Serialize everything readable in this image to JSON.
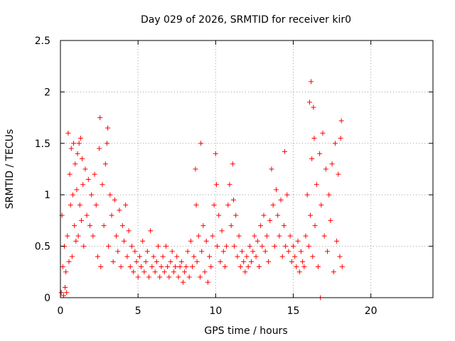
{
  "chart_data": {
    "type": "scatter",
    "title": "Day 029 of 2026, SRMTID for receiver kir0",
    "xlabel": "GPS time / hours",
    "ylabel": "SRMTID / TECUs",
    "xlim": [
      0,
      24
    ],
    "ylim": [
      0,
      2.5
    ],
    "xticks": [
      0,
      5,
      10,
      15,
      20
    ],
    "xtick_labels": [
      "0",
      "5",
      "10",
      "15",
      "20"
    ],
    "yticks": [
      0,
      0.5,
      1,
      1.5,
      2,
      2.5
    ],
    "ytick_labels": [
      "0",
      "0.5",
      "1",
      "1.5",
      "2",
      "2.5"
    ],
    "grid": true,
    "marker": "+",
    "color": "#ff0000",
    "series": [
      {
        "name": "SRMTID",
        "points": [
          [
            0.05,
            0.05
          ],
          [
            0.1,
            0.8
          ],
          [
            0.15,
            0.3
          ],
          [
            0.2,
            0.02
          ],
          [
            0.25,
            0.5
          ],
          [
            0.3,
            0.1
          ],
          [
            0.35,
            0.25
          ],
          [
            0.4,
            0.05
          ],
          [
            0.45,
            0.6
          ],
          [
            0.5,
            1.6
          ],
          [
            0.55,
            0.35
          ],
          [
            0.6,
            1.2
          ],
          [
            0.65,
            0.9
          ],
          [
            0.7,
            1.45
          ],
          [
            0.75,
            0.4
          ],
          [
            0.8,
            1.0
          ],
          [
            0.85,
            1.5
          ],
          [
            0.9,
            0.7
          ],
          [
            0.95,
            1.3
          ],
          [
            1.0,
            0.55
          ],
          [
            1.05,
            1.05
          ],
          [
            1.1,
            1.4
          ],
          [
            1.15,
            0.6
          ],
          [
            1.2,
            1.5
          ],
          [
            1.25,
            0.9
          ],
          [
            1.3,
            1.55
          ],
          [
            1.35,
            0.75
          ],
          [
            1.4,
            1.35
          ],
          [
            1.45,
            1.1
          ],
          [
            1.5,
            0.5
          ],
          [
            1.6,
            1.25
          ],
          [
            1.7,
            0.8
          ],
          [
            1.8,
            1.15
          ],
          [
            1.9,
            0.7
          ],
          [
            2.0,
            1.0
          ],
          [
            2.1,
            0.6
          ],
          [
            2.2,
            1.2
          ],
          [
            2.3,
            0.9
          ],
          [
            2.4,
            0.4
          ],
          [
            2.5,
            1.45
          ],
          [
            2.55,
            1.75
          ],
          [
            2.6,
            0.3
          ],
          [
            2.7,
            1.1
          ],
          [
            2.8,
            0.7
          ],
          [
            2.9,
            1.3
          ],
          [
            3.0,
            1.5
          ],
          [
            3.05,
            1.65
          ],
          [
            3.1,
            0.5
          ],
          [
            3.2,
            1.0
          ],
          [
            3.3,
            0.8
          ],
          [
            3.4,
            0.35
          ],
          [
            3.5,
            0.95
          ],
          [
            3.6,
            0.6
          ],
          [
            3.7,
            0.45
          ],
          [
            3.8,
            0.85
          ],
          [
            3.9,
            0.3
          ],
          [
            4.0,
            0.7
          ],
          [
            4.1,
            0.55
          ],
          [
            4.2,
            0.9
          ],
          [
            4.3,
            0.4
          ],
          [
            4.4,
            0.65
          ],
          [
            4.5,
            0.3
          ],
          [
            4.6,
            0.5
          ],
          [
            4.7,
            0.25
          ],
          [
            4.8,
            0.45
          ],
          [
            4.9,
            0.35
          ],
          [
            5.0,
            0.2
          ],
          [
            5.1,
            0.4
          ],
          [
            5.2,
            0.3
          ],
          [
            5.3,
            0.55
          ],
          [
            5.4,
            0.25
          ],
          [
            5.5,
            0.35
          ],
          [
            5.6,
            0.45
          ],
          [
            5.7,
            0.2
          ],
          [
            5.8,
            0.65
          ],
          [
            5.9,
            0.3
          ],
          [
            6.0,
            0.4
          ],
          [
            6.1,
            0.25
          ],
          [
            6.2,
            0.35
          ],
          [
            6.3,
            0.5
          ],
          [
            6.4,
            0.2
          ],
          [
            6.5,
            0.3
          ],
          [
            6.6,
            0.4
          ],
          [
            6.7,
            0.25
          ],
          [
            6.8,
            0.5
          ],
          [
            6.9,
            0.3
          ],
          [
            7.0,
            0.2
          ],
          [
            7.1,
            0.35
          ],
          [
            7.2,
            0.45
          ],
          [
            7.3,
            0.25
          ],
          [
            7.4,
            0.3
          ],
          [
            7.5,
            0.4
          ],
          [
            7.6,
            0.2
          ],
          [
            7.7,
            0.3
          ],
          [
            7.8,
            0.35
          ],
          [
            7.9,
            0.15
          ],
          [
            8.0,
            0.25
          ],
          [
            8.1,
            0.3
          ],
          [
            8.2,
            0.45
          ],
          [
            8.3,
            0.2
          ],
          [
            8.4,
            0.55
          ],
          [
            8.5,
            0.3
          ],
          [
            8.6,
            0.4
          ],
          [
            8.7,
            1.25
          ],
          [
            8.75,
            0.9
          ],
          [
            8.8,
            0.35
          ],
          [
            8.9,
            0.6
          ],
          [
            9.0,
            0.2
          ],
          [
            9.05,
            1.5
          ],
          [
            9.1,
            0.45
          ],
          [
            9.2,
            0.7
          ],
          [
            9.3,
            0.25
          ],
          [
            9.4,
            0.55
          ],
          [
            9.5,
            0.15
          ],
          [
            9.6,
            0.4
          ],
          [
            9.7,
            0.3
          ],
          [
            9.8,
            0.6
          ],
          [
            9.9,
            0.9
          ],
          [
            10.0,
            1.4
          ],
          [
            10.05,
            1.1
          ],
          [
            10.1,
            0.5
          ],
          [
            10.2,
            0.8
          ],
          [
            10.3,
            0.35
          ],
          [
            10.4,
            0.65
          ],
          [
            10.5,
            0.45
          ],
          [
            10.6,
            0.3
          ],
          [
            10.7,
            0.5
          ],
          [
            10.8,
            0.9
          ],
          [
            10.9,
            1.1
          ],
          [
            11.0,
            0.7
          ],
          [
            11.1,
            1.3
          ],
          [
            11.15,
            0.95
          ],
          [
            11.2,
            0.5
          ],
          [
            11.3,
            0.8
          ],
          [
            11.4,
            0.4
          ],
          [
            11.5,
            0.6
          ],
          [
            11.6,
            0.3
          ],
          [
            11.7,
            0.45
          ],
          [
            11.8,
            0.35
          ],
          [
            11.9,
            0.25
          ],
          [
            12.0,
            0.4
          ],
          [
            12.1,
            0.3
          ],
          [
            12.2,
            0.5
          ],
          [
            12.3,
            0.35
          ],
          [
            12.4,
            0.45
          ],
          [
            12.5,
            0.6
          ],
          [
            12.6,
            0.4
          ],
          [
            12.7,
            0.55
          ],
          [
            12.8,
            0.3
          ],
          [
            12.9,
            0.7
          ],
          [
            13.0,
            0.5
          ],
          [
            13.1,
            0.8
          ],
          [
            13.2,
            0.45
          ],
          [
            13.3,
            0.6
          ],
          [
            13.4,
            0.35
          ],
          [
            13.5,
            0.75
          ],
          [
            13.6,
            1.25
          ],
          [
            13.7,
            0.9
          ],
          [
            13.8,
            0.5
          ],
          [
            13.9,
            1.05
          ],
          [
            14.0,
            0.8
          ],
          [
            14.1,
            0.6
          ],
          [
            14.2,
            0.95
          ],
          [
            14.3,
            0.4
          ],
          [
            14.4,
            0.7
          ],
          [
            14.45,
            1.42
          ],
          [
            14.5,
            0.5
          ],
          [
            14.6,
            1.0
          ],
          [
            14.7,
            0.45
          ],
          [
            14.8,
            0.6
          ],
          [
            14.9,
            0.35
          ],
          [
            15.0,
            0.5
          ],
          [
            15.1,
            0.4
          ],
          [
            15.2,
            0.3
          ],
          [
            15.3,
            0.55
          ],
          [
            15.4,
            0.25
          ],
          [
            15.5,
            0.45
          ],
          [
            15.6,
            0.35
          ],
          [
            15.7,
            0.3
          ],
          [
            15.8,
            0.6
          ],
          [
            15.9,
            1.0
          ],
          [
            16.0,
            0.5
          ],
          [
            16.05,
            1.9
          ],
          [
            16.1,
            0.8
          ],
          [
            16.15,
            2.1
          ],
          [
            16.2,
            1.35
          ],
          [
            16.25,
            0.4
          ],
          [
            16.3,
            1.85
          ],
          [
            16.35,
            1.55
          ],
          [
            16.4,
            0.7
          ],
          [
            16.5,
            1.1
          ],
          [
            16.6,
            0.3
          ],
          [
            16.7,
            1.4
          ],
          [
            16.75,
            0.0
          ],
          [
            16.8,
            0.9
          ],
          [
            16.9,
            1.6
          ],
          [
            17.0,
            0.6
          ],
          [
            17.1,
            1.25
          ],
          [
            17.2,
            0.45
          ],
          [
            17.3,
            1.0
          ],
          [
            17.4,
            0.75
          ],
          [
            17.5,
            1.3
          ],
          [
            17.6,
            0.25
          ],
          [
            17.7,
            1.5
          ],
          [
            17.8,
            0.55
          ],
          [
            17.9,
            1.2
          ],
          [
            18.0,
            0.4
          ],
          [
            18.05,
            1.55
          ],
          [
            18.1,
            1.72
          ],
          [
            18.15,
            0.3
          ]
        ]
      }
    ]
  }
}
